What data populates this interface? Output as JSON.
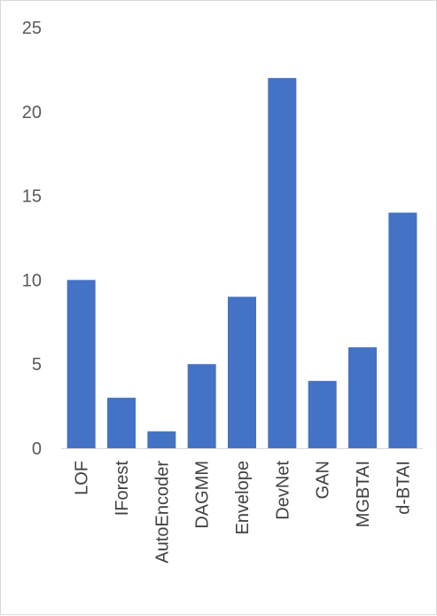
{
  "chart_data": {
    "type": "bar",
    "categories": [
      "LOF",
      "IForest",
      "AutoEncoder",
      "DAGMM",
      "Envelope",
      "DevNet",
      "GAN",
      "MGBTAI",
      "d-BTAI"
    ],
    "values": [
      10,
      3,
      1,
      5,
      9,
      22,
      4,
      6,
      14
    ],
    "title": "",
    "xlabel": "",
    "ylabel": "",
    "ylim": [
      0,
      25
    ],
    "yticks": [
      0,
      5,
      10,
      15,
      20,
      25
    ],
    "grid": false,
    "legend": "none",
    "bar_color": "#4472c4"
  }
}
